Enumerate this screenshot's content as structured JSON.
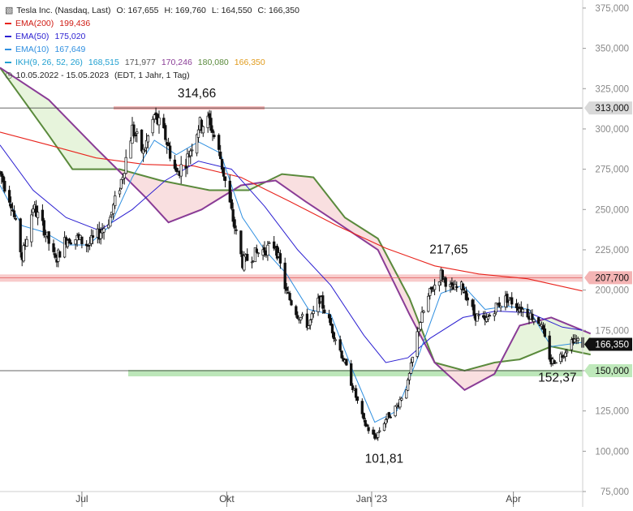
{
  "chart_data": {
    "type": "candlestick",
    "header": {
      "instrument": "Tesla Inc. (Nasdaq, Last)",
      "open": "O: 167,655",
      "high": "H: 169,760",
      "low": "L: 164,550",
      "close": "C: 166,350"
    },
    "legend": [
      {
        "label": "EMA(200)",
        "value": "199,436",
        "color": "#e8231c"
      },
      {
        "label": "EMA(50)",
        "value": "175,020",
        "color": "#2b1fd1"
      },
      {
        "label": "EMA(10)",
        "value": "167,649",
        "color": "#2f8fe0"
      }
    ],
    "ichimoku": {
      "label": "IKH(9, 26, 52, 26)",
      "values": [
        "168,515",
        "171,977",
        "170,246",
        "180,080",
        "166,350"
      ],
      "colors": [
        "#1f9fd0",
        "#555555",
        "#8a3c96",
        "#5a8a3c",
        "#e09a1a"
      ]
    },
    "period": {
      "range": "10.05.2022 - 15.05.2023",
      "info": "(EDT, 1 Jahr, 1 Tag)"
    },
    "y_axis": {
      "min": 75,
      "max": 380,
      "grid": false,
      "ticks": [
        375,
        350,
        325,
        300,
        275,
        250,
        225,
        200,
        175,
        150,
        125,
        100,
        75
      ],
      "tick_labels": [
        "375,000",
        "350,000",
        "325,000",
        "300,000",
        "275,000",
        "250,000",
        "225,000",
        "200,000",
        "175,000",
        "150,000",
        "125,000",
        "100,000",
        "75,000"
      ]
    },
    "x_axis": {
      "start": "2022-05-10",
      "end": "2023-05-15",
      "ticks": [
        {
          "date": "2022-07-01",
          "label": "Jul"
        },
        {
          "date": "2022-10-01",
          "label": "Okt"
        },
        {
          "date": "2023-01-01",
          "label": "Jan '23"
        },
        {
          "date": "2023-04-01",
          "label": "Apr"
        }
      ]
    },
    "levels": [
      {
        "value": 313,
        "label": "313,000",
        "style": "line"
      },
      {
        "value": 207.7,
        "label": "207,700",
        "style": "red-band"
      },
      {
        "value": 150,
        "label": "150,000",
        "style": "green-band"
      },
      {
        "value": 166.35,
        "label": "166,350",
        "style": "last-price"
      }
    ],
    "annotations": [
      {
        "text": "314,66",
        "date": "2022-09-07",
        "value": 314.66
      },
      {
        "text": "217,65",
        "date": "2023-02-16",
        "value": 217.65
      },
      {
        "text": "101,81",
        "date": "2023-01-06",
        "value": 101.81
      },
      {
        "text": "152,37",
        "date": "2023-04-26",
        "value": 152.37
      }
    ],
    "close_path": [
      [
        "2022-05-10",
        273
      ],
      [
        "2022-05-17",
        255
      ],
      [
        "2022-05-24",
        220
      ],
      [
        "2022-05-31",
        252
      ],
      [
        "2022-06-07",
        238
      ],
      [
        "2022-06-14",
        218
      ],
      [
        "2022-06-21",
        232
      ],
      [
        "2022-06-28",
        232
      ],
      [
        "2022-07-05",
        228
      ],
      [
        "2022-07-12",
        235
      ],
      [
        "2022-07-19",
        245
      ],
      [
        "2022-07-26",
        268
      ],
      [
        "2022-08-02",
        300
      ],
      [
        "2022-08-09",
        285
      ],
      [
        "2022-08-16",
        308
      ],
      [
        "2022-08-23",
        295
      ],
      [
        "2022-08-30",
        272
      ],
      [
        "2022-09-06",
        282
      ],
      [
        "2022-09-13",
        302
      ],
      [
        "2022-09-20",
        305
      ],
      [
        "2022-09-27",
        282
      ],
      [
        "2022-10-04",
        248
      ],
      [
        "2022-10-11",
        217
      ],
      [
        "2022-10-18",
        222
      ],
      [
        "2022-10-25",
        225
      ],
      [
        "2022-11-01",
        228
      ],
      [
        "2022-11-08",
        198
      ],
      [
        "2022-11-15",
        185
      ],
      [
        "2022-11-22",
        178
      ],
      [
        "2022-11-29",
        195
      ],
      [
        "2022-12-06",
        178
      ],
      [
        "2022-12-13",
        160
      ],
      [
        "2022-12-20",
        140
      ],
      [
        "2022-12-27",
        118
      ],
      [
        "2023-01-03",
        108
      ],
      [
        "2023-01-10",
        120
      ],
      [
        "2023-01-17",
        128
      ],
      [
        "2023-01-24",
        142
      ],
      [
        "2023-01-31",
        178
      ],
      [
        "2023-02-07",
        198
      ],
      [
        "2023-02-14",
        210
      ],
      [
        "2023-02-21",
        200
      ],
      [
        "2023-02-28",
        202
      ],
      [
        "2023-03-07",
        185
      ],
      [
        "2023-03-14",
        180
      ],
      [
        "2023-03-21",
        190
      ],
      [
        "2023-03-28",
        195
      ],
      [
        "2023-04-04",
        190
      ],
      [
        "2023-04-11",
        185
      ],
      [
        "2023-04-18",
        180
      ],
      [
        "2023-04-25",
        155
      ],
      [
        "2023-05-02",
        160
      ],
      [
        "2023-05-09",
        170
      ],
      [
        "2023-05-15",
        166.35
      ]
    ],
    "ema10": [
      [
        "2022-05-10",
        265
      ],
      [
        "2022-05-24",
        240
      ],
      [
        "2022-06-07",
        236
      ],
      [
        "2022-06-21",
        228
      ],
      [
        "2022-07-05",
        228
      ],
      [
        "2022-07-19",
        240
      ],
      [
        "2022-08-02",
        270
      ],
      [
        "2022-08-16",
        293
      ],
      [
        "2022-08-30",
        284
      ],
      [
        "2022-09-13",
        292
      ],
      [
        "2022-09-27",
        285
      ],
      [
        "2022-10-11",
        245
      ],
      [
        "2022-10-25",
        225
      ],
      [
        "2022-11-08",
        210
      ],
      [
        "2022-11-22",
        188
      ],
      [
        "2022-12-06",
        185
      ],
      [
        "2022-12-20",
        150
      ],
      [
        "2023-01-03",
        118
      ],
      [
        "2023-01-17",
        125
      ],
      [
        "2023-01-31",
        160
      ],
      [
        "2023-02-14",
        198
      ],
      [
        "2023-02-28",
        203
      ],
      [
        "2023-03-14",
        188
      ],
      [
        "2023-03-28",
        190
      ],
      [
        "2023-04-11",
        188
      ],
      [
        "2023-04-25",
        165
      ],
      [
        "2023-05-15",
        167.6
      ]
    ],
    "ema50": [
      [
        "2022-05-10",
        290
      ],
      [
        "2022-05-31",
        262
      ],
      [
        "2022-06-21",
        245
      ],
      [
        "2022-07-12",
        237
      ],
      [
        "2022-08-02",
        250
      ],
      [
        "2022-08-23",
        268
      ],
      [
        "2022-09-13",
        280
      ],
      [
        "2022-10-04",
        275
      ],
      [
        "2022-10-25",
        252
      ],
      [
        "2022-11-15",
        225
      ],
      [
        "2022-12-06",
        203
      ],
      [
        "2022-12-27",
        172
      ],
      [
        "2023-01-10",
        155
      ],
      [
        "2023-01-24",
        158
      ],
      [
        "2023-02-07",
        170
      ],
      [
        "2023-02-28",
        183
      ],
      [
        "2023-03-21",
        187
      ],
      [
        "2023-04-11",
        186
      ],
      [
        "2023-05-02",
        177
      ],
      [
        "2023-05-15",
        175
      ]
    ],
    "ema200": [
      [
        "2022-05-10",
        298
      ],
      [
        "2022-06-10",
        290
      ],
      [
        "2022-07-10",
        282
      ],
      [
        "2022-08-10",
        278
      ],
      [
        "2022-09-10",
        277
      ],
      [
        "2022-10-10",
        270
      ],
      [
        "2022-11-10",
        255
      ],
      [
        "2022-12-10",
        240
      ],
      [
        "2023-01-10",
        226
      ],
      [
        "2023-02-10",
        215
      ],
      [
        "2023-03-10",
        210
      ],
      [
        "2023-04-10",
        207
      ],
      [
        "2023-05-15",
        199.4
      ]
    ],
    "ichimoku_span_a": [
      [
        "2022-05-10",
        338
      ],
      [
        "2022-06-10",
        318
      ],
      [
        "2022-07-10",
        288
      ],
      [
        "2022-08-10",
        258
      ],
      [
        "2022-08-25",
        242
      ],
      [
        "2022-09-15",
        250
      ],
      [
        "2022-10-10",
        265
      ],
      [
        "2022-11-01",
        268
      ],
      [
        "2022-11-20",
        255
      ],
      [
        "2022-12-10",
        242
      ],
      [
        "2023-01-05",
        225
      ],
      [
        "2023-01-25",
        185
      ],
      [
        "2023-02-10",
        155
      ],
      [
        "2023-03-01",
        138
      ],
      [
        "2023-03-20",
        148
      ],
      [
        "2023-04-05",
        178
      ],
      [
        "2023-04-25",
        183
      ],
      [
        "2023-05-20",
        173
      ]
    ],
    "ichimoku_span_b": [
      [
        "2022-05-10",
        338
      ],
      [
        "2022-06-10",
        296
      ],
      [
        "2022-06-25",
        275
      ],
      [
        "2022-07-25",
        275
      ],
      [
        "2022-08-20",
        268
      ],
      [
        "2022-09-20",
        262
      ],
      [
        "2022-10-15",
        262
      ],
      [
        "2022-11-05",
        272
      ],
      [
        "2022-11-25",
        270
      ],
      [
        "2022-12-15",
        245
      ],
      [
        "2023-01-05",
        232
      ],
      [
        "2023-01-25",
        195
      ],
      [
        "2023-02-10",
        155
      ],
      [
        "2023-03-01",
        150
      ],
      [
        "2023-03-20",
        155
      ],
      [
        "2023-04-05",
        157
      ],
      [
        "2023-04-25",
        165
      ],
      [
        "2023-05-20",
        160
      ]
    ]
  }
}
